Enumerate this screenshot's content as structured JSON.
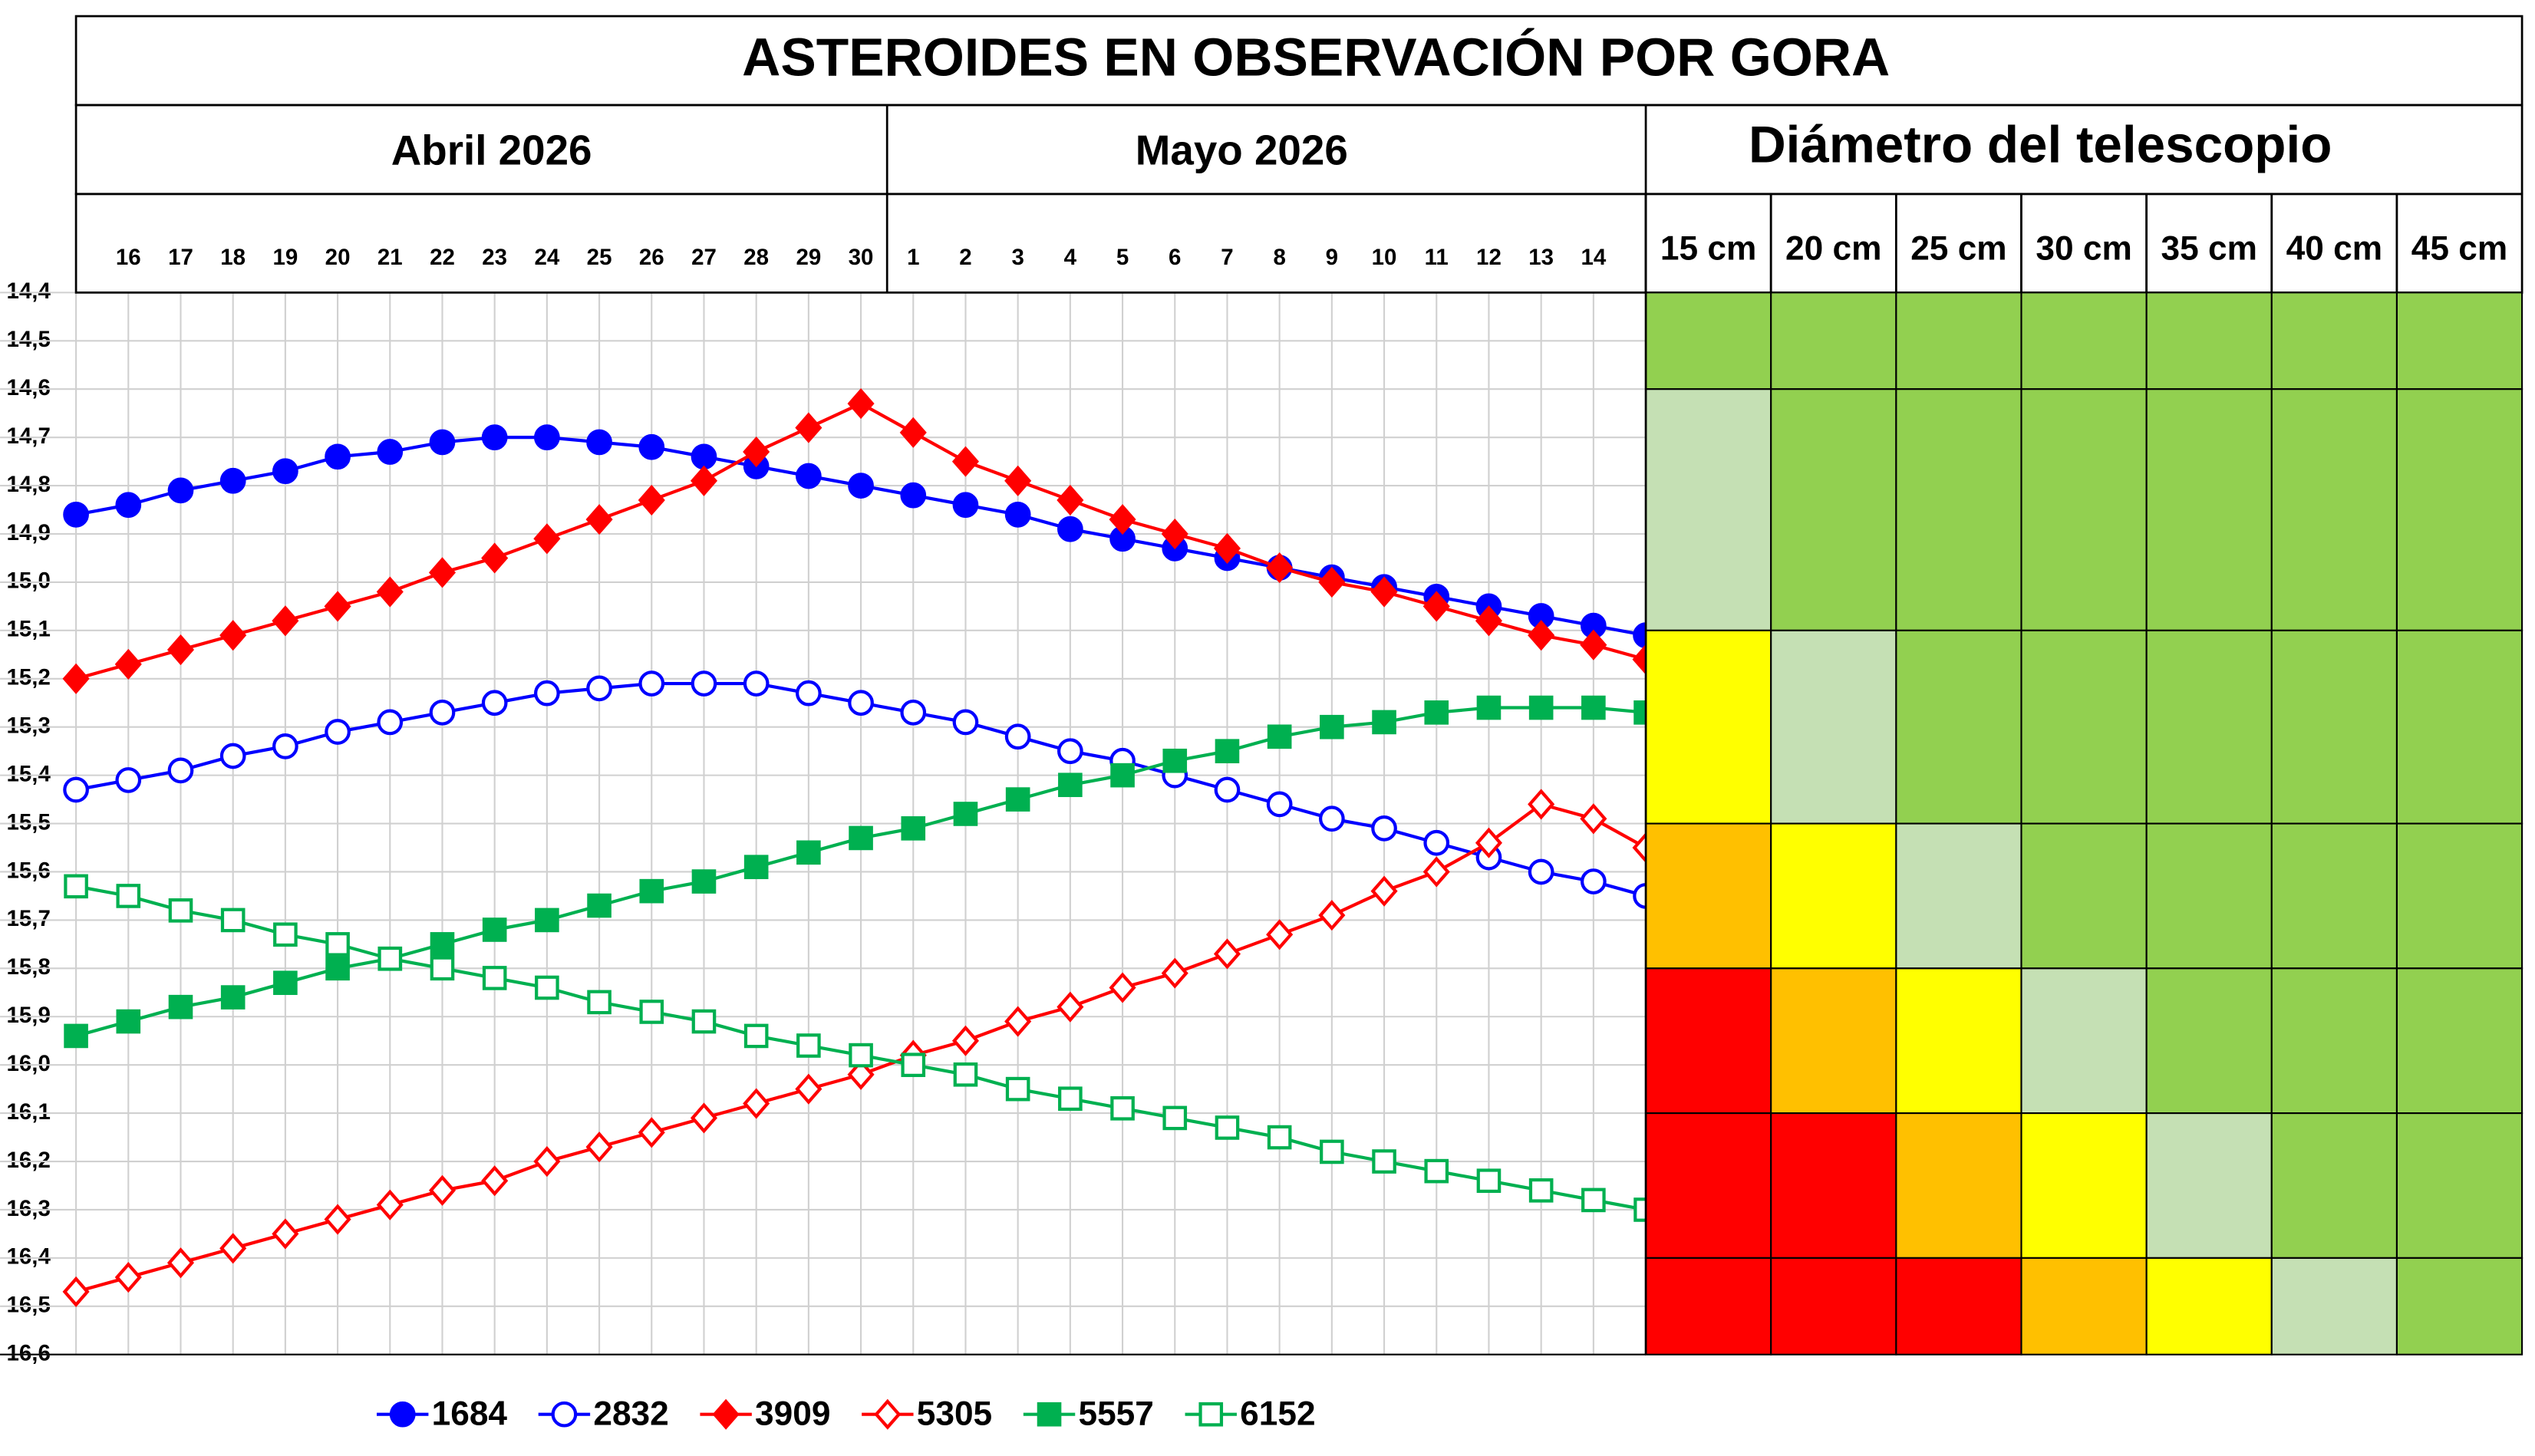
{
  "chart_data": {
    "type": "line",
    "title": "ASTEROIDES EN OBSERVACIÓN POR GORA",
    "months": [
      "Abril 2026",
      "Mayo 2026"
    ],
    "categories": [
      null,
      "16",
      "17",
      "18",
      "19",
      "20",
      "21",
      "22",
      "23",
      "24",
      "25",
      "26",
      "27",
      "28",
      "29",
      "30",
      "1",
      "2",
      "3",
      "4",
      "5",
      "6",
      "7",
      "8",
      "9",
      "10",
      "11",
      "12",
      "13",
      "14",
      null
    ],
    "ylim": [
      14.4,
      16.6
    ],
    "y_inverted": true,
    "grid": true,
    "yticks": [
      {
        "value": 14.4,
        "label": "14,4"
      },
      {
        "value": 14.5,
        "label": "14,5"
      },
      {
        "value": 14.6,
        "label": "14,6"
      },
      {
        "value": 14.7,
        "label": "14,7"
      },
      {
        "value": 14.8,
        "label": "14,8"
      },
      {
        "value": 14.9,
        "label": "14,9"
      },
      {
        "value": 15.0,
        "label": "15,0"
      },
      {
        "value": 15.1,
        "label": "15,1"
      },
      {
        "value": 15.2,
        "label": "15,2"
      },
      {
        "value": 15.3,
        "label": "15,3"
      },
      {
        "value": 15.4,
        "label": "15,4"
      },
      {
        "value": 15.5,
        "label": "15,5"
      },
      {
        "value": 15.6,
        "label": "15,6"
      },
      {
        "value": 15.7,
        "label": "15,7"
      },
      {
        "value": 15.8,
        "label": "15,8"
      },
      {
        "value": 15.9,
        "label": "15,9"
      },
      {
        "value": 16.0,
        "label": "16,0"
      },
      {
        "value": 16.1,
        "label": "16,1"
      },
      {
        "value": 16.2,
        "label": "16,2"
      },
      {
        "value": 16.3,
        "label": "16,3"
      },
      {
        "value": 16.4,
        "label": "16,4"
      },
      {
        "value": 16.5,
        "label": "16,5"
      },
      {
        "value": 16.6,
        "label": "16,6"
      }
    ],
    "legend": "bottom",
    "series": [
      {
        "name": "1684",
        "color": "#0000ff",
        "marker": "circle",
        "filled": true,
        "values": [
          14.86,
          14.84,
          14.81,
          14.79,
          14.77,
          14.74,
          14.73,
          14.71,
          14.7,
          14.7,
          14.71,
          14.72,
          14.74,
          14.76,
          14.78,
          14.8,
          14.82,
          14.84,
          14.86,
          14.89,
          14.91,
          14.93,
          14.95,
          14.97,
          14.99,
          15.01,
          15.03,
          15.05,
          15.07,
          15.09,
          15.11
        ]
      },
      {
        "name": "2832",
        "color": "#0000ff",
        "marker": "circle",
        "filled": false,
        "values": [
          15.43,
          15.41,
          15.39,
          15.36,
          15.34,
          15.31,
          15.29,
          15.27,
          15.25,
          15.23,
          15.22,
          15.21,
          15.21,
          15.21,
          15.23,
          15.25,
          15.27,
          15.29,
          15.32,
          15.35,
          15.37,
          15.4,
          15.43,
          15.46,
          15.49,
          15.51,
          15.54,
          15.57,
          15.6,
          15.62,
          15.65
        ]
      },
      {
        "name": "3909",
        "color": "#ff0000",
        "marker": "diamond",
        "filled": true,
        "values": [
          15.2,
          15.17,
          15.14,
          15.11,
          15.08,
          15.05,
          15.02,
          14.98,
          14.95,
          14.91,
          14.87,
          14.83,
          14.79,
          14.73,
          14.68,
          14.63,
          14.69,
          14.75,
          14.79,
          14.83,
          14.87,
          14.9,
          14.93,
          14.97,
          15.0,
          15.02,
          15.05,
          15.08,
          15.11,
          15.13,
          15.16
        ]
      },
      {
        "name": "5305",
        "color": "#ff0000",
        "marker": "diamond",
        "filled": false,
        "values": [
          16.47,
          16.44,
          16.41,
          16.38,
          16.35,
          16.32,
          16.29,
          16.26,
          16.24,
          16.2,
          16.17,
          16.14,
          16.11,
          16.08,
          16.05,
          16.02,
          15.98,
          15.95,
          15.91,
          15.88,
          15.84,
          15.81,
          15.77,
          15.73,
          15.69,
          15.64,
          15.6,
          15.54,
          15.46,
          15.49,
          15.55
        ]
      },
      {
        "name": "5557",
        "color": "#00b050",
        "marker": "square",
        "filled": true,
        "values": [
          15.94,
          15.91,
          15.88,
          15.86,
          15.83,
          15.8,
          15.78,
          15.75,
          15.72,
          15.7,
          15.67,
          15.64,
          15.62,
          15.59,
          15.56,
          15.53,
          15.51,
          15.48,
          15.45,
          15.42,
          15.4,
          15.37,
          15.35,
          15.32,
          15.3,
          15.29,
          15.27,
          15.26,
          15.26,
          15.26,
          15.27
        ]
      },
      {
        "name": "6152",
        "color": "#00b050",
        "marker": "square",
        "filled": false,
        "values": [
          15.63,
          15.65,
          15.68,
          15.7,
          15.73,
          15.75,
          15.78,
          15.8,
          15.82,
          15.84,
          15.87,
          15.89,
          15.91,
          15.94,
          15.96,
          15.98,
          16.0,
          16.02,
          16.05,
          16.07,
          16.09,
          16.11,
          16.13,
          16.15,
          16.18,
          16.2,
          16.22,
          16.24,
          16.26,
          16.28,
          16.3
        ]
      }
    ],
    "telescope": {
      "title": "Diámetro del telescopio",
      "columns": [
        "15 cm",
        "20 cm",
        "25 cm",
        "30 cm",
        "35 cm",
        "40 cm",
        "45 cm"
      ],
      "bands": [
        14.4,
        14.6,
        15.1,
        15.5,
        15.8,
        16.1,
        16.4,
        16.6
      ],
      "colors": [
        [
          "#92d050",
          "#92d050",
          "#92d050",
          "#92d050",
          "#92d050",
          "#92d050",
          "#92d050"
        ],
        [
          "#c5e0b4",
          "#92d050",
          "#92d050",
          "#92d050",
          "#92d050",
          "#92d050",
          "#92d050"
        ],
        [
          "#ffff00",
          "#c5e0b4",
          "#92d050",
          "#92d050",
          "#92d050",
          "#92d050",
          "#92d050"
        ],
        [
          "#ffc000",
          "#ffff00",
          "#c5e0b4",
          "#92d050",
          "#92d050",
          "#92d050",
          "#92d050"
        ],
        [
          "#ff0000",
          "#ffc000",
          "#ffff00",
          "#c5e0b4",
          "#92d050",
          "#92d050",
          "#92d050"
        ],
        [
          "#ff0000",
          "#ff0000",
          "#ffc000",
          "#ffff00",
          "#c5e0b4",
          "#92d050",
          "#92d050"
        ],
        [
          "#ff0000",
          "#ff0000",
          "#ff0000",
          "#ffc000",
          "#ffff00",
          "#c5e0b4",
          "#92d050"
        ]
      ]
    }
  }
}
